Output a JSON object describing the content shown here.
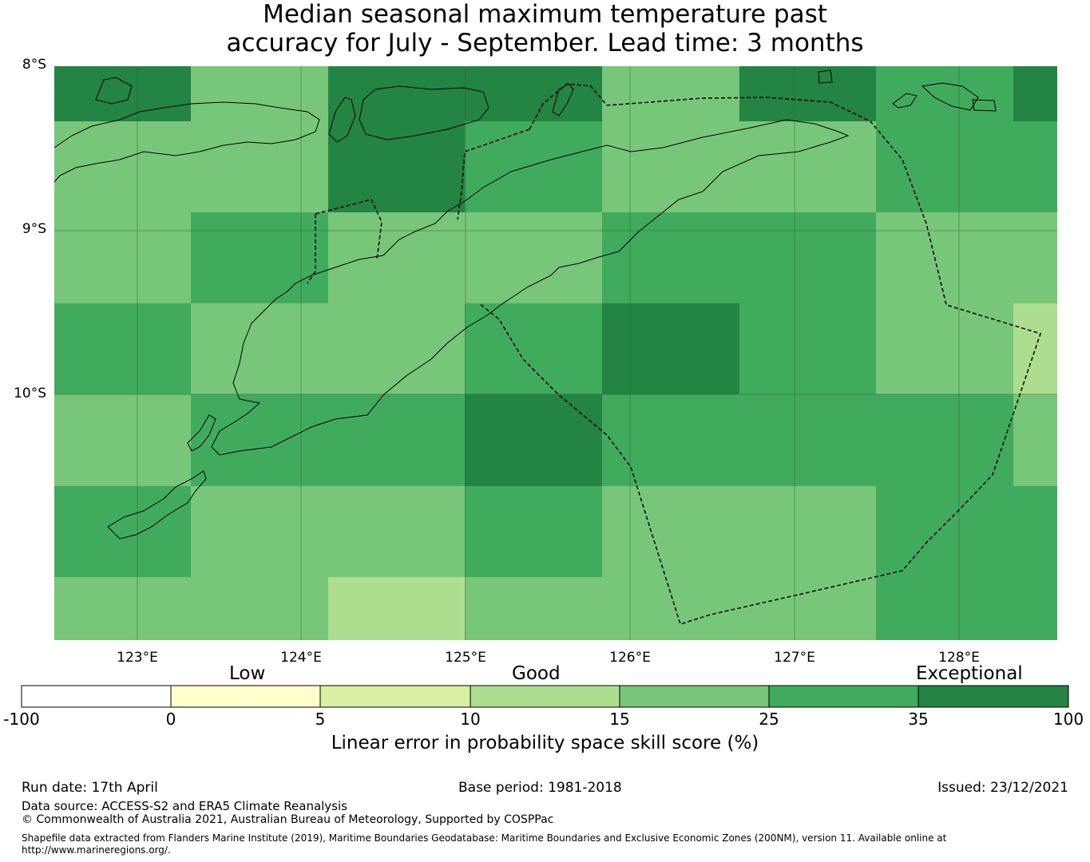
{
  "title": {
    "line1": "Median seasonal maximum temperature past",
    "line2": "accuracy for July - September. Lead time: 3 months"
  },
  "map": {
    "lat_labels": [
      "8°S",
      "9°S",
      "10°S"
    ],
    "lon_labels": [
      "123°E",
      "124°E",
      "125°E",
      "126°E",
      "127°E",
      "128°E"
    ],
    "lon_range": [
      122.5,
      128.6
    ],
    "lat_range": [
      -8.0,
      -11.5
    ],
    "grid_cells_skill_percent": [
      [
        40,
        20,
        40,
        40,
        20,
        40,
        30,
        40
      ],
      [
        20,
        20,
        40,
        30,
        20,
        20,
        30,
        30
      ],
      [
        20,
        30,
        20,
        20,
        30,
        30,
        20,
        20
      ],
      [
        30,
        20,
        20,
        30,
        40,
        30,
        20,
        12
      ],
      [
        20,
        30,
        30,
        40,
        30,
        30,
        30,
        20
      ],
      [
        30,
        20,
        20,
        30,
        20,
        20,
        30,
        30
      ],
      [
        20,
        20,
        12,
        20,
        20,
        20,
        30,
        30
      ]
    ]
  },
  "colorbar": {
    "categories": [
      "Low",
      "Good",
      "Exceptional"
    ],
    "ticks": [
      "-100",
      "0",
      "5",
      "10",
      "15",
      "25",
      "35",
      "100"
    ],
    "colors": [
      "#ffffff",
      "#ffffcc",
      "#d9f0a3",
      "#addd8e",
      "#78c679",
      "#41ab5d",
      "#238443"
    ],
    "label": "Linear error in probability space skill score (%)"
  },
  "footer": {
    "run_date": "Run date: 17th April",
    "base_period": "Base period: 1981-2018",
    "issued": "Issued: 23/12/2021",
    "data_source": "Data source: ACCESS-S2 and ERA5 Climate Reanalysis",
    "copyright": "© Commonwealth of Australia 2021, Australian Bureau of Meteorology, Supported by COSPPac",
    "shapefile_line1": "Shapefile data extracted from Flanders Marine Institute (2019), Maritime Boundaries Geodatabase: Maritime Boundaries and Exclusive Economic Zones (200NM), version 11. Available online at",
    "shapefile_line2": "http://www.marineregions.org/."
  }
}
